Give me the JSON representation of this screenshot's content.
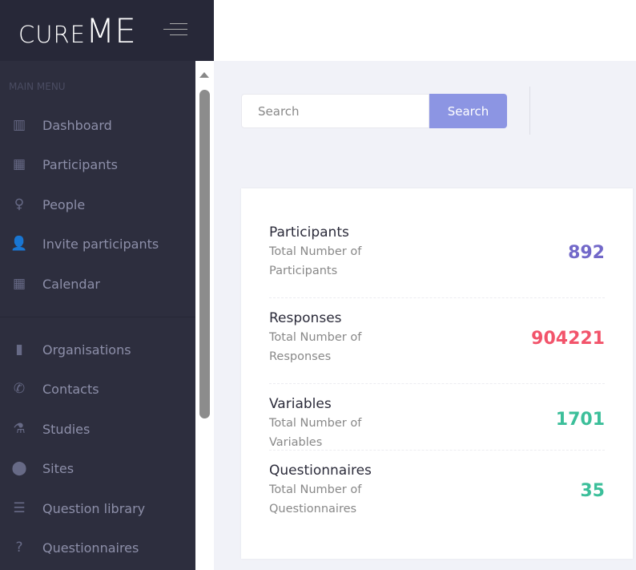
{
  "brand": {
    "part1": "cure",
    "part2": "ME"
  },
  "sidebar": {
    "menu_title": "MAIN MENU",
    "items": [
      {
        "label": "Dashboard",
        "icon": "bar-chart-icon"
      },
      {
        "label": "Participants",
        "icon": "qr-code-icon"
      },
      {
        "label": "People",
        "icon": "person-icon"
      },
      {
        "label": "Invite participants",
        "icon": "user-plus-icon"
      },
      {
        "label": "Calendar",
        "icon": "calendar-icon"
      },
      {
        "label": "Organisations",
        "icon": "building-icon"
      },
      {
        "label": "Contacts",
        "icon": "phone-icon"
      },
      {
        "label": "Studies",
        "icon": "flask-icon"
      },
      {
        "label": "Sites",
        "icon": "map-marker-icon"
      },
      {
        "label": "Question library",
        "icon": "list-icon"
      },
      {
        "label": "Questionnaires",
        "icon": "question-icon"
      }
    ]
  },
  "search": {
    "placeholder": "Search",
    "button": "Search"
  },
  "stats": [
    {
      "title": "Participants",
      "subtitle": "Total Number of Participants",
      "value": "892",
      "color": "#7268c9"
    },
    {
      "title": "Responses",
      "subtitle": "Total Number of Responses",
      "value": "904221",
      "color": "#f2546b"
    },
    {
      "title": "Variables",
      "subtitle": "Total Number of Variables",
      "value": "1701",
      "color": "#3cbf9a"
    },
    {
      "title": "Questionnaires",
      "subtitle": "Total Number of Questionnaires",
      "value": "35",
      "color": "#3cbf9a"
    }
  ]
}
